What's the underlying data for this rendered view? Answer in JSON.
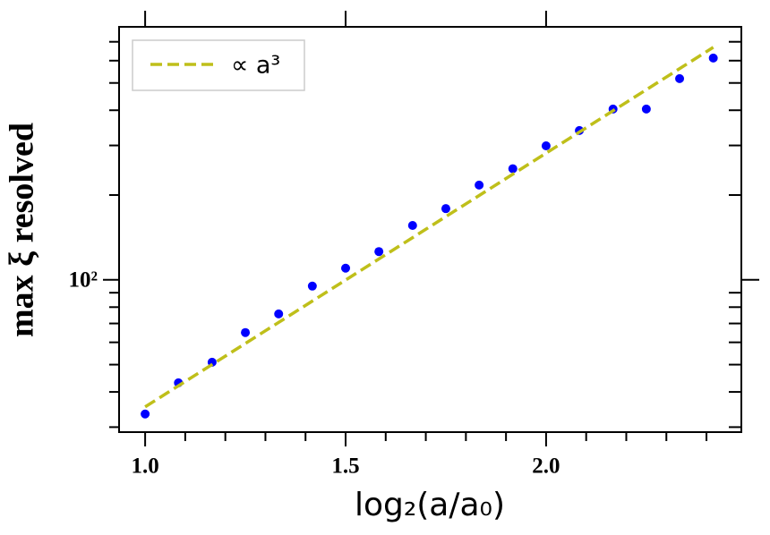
{
  "chart_data": {
    "type": "scatter",
    "xlabel": "log₂(a/a₀)",
    "ylabel": "max ξ resolved",
    "log_y": true,
    "xlim": [
      0.935,
      2.487
    ],
    "ylim": [
      28.8,
      791
    ],
    "xticks": [
      {
        "value": 1.0,
        "label": "1.0"
      },
      {
        "value": 1.5,
        "label": "1.5"
      },
      {
        "value": 2.0,
        "label": "2.0"
      }
    ],
    "xminorticks": [
      1.1,
      1.2,
      1.3,
      1.4,
      1.6,
      1.7,
      1.8,
      1.9,
      2.1,
      2.2,
      2.3,
      2.4
    ],
    "yticks": [
      {
        "value": 100,
        "label": "10²"
      }
    ],
    "yminorticks": [
      30,
      40,
      50,
      60,
      70,
      80,
      90,
      200,
      300,
      400,
      500,
      600,
      700
    ],
    "legend_position": "upper left",
    "series": [
      {
        "type": "scatter",
        "color": "#0000ff",
        "x": [
          1.0,
          1.083,
          1.167,
          1.25,
          1.333,
          1.417,
          1.5,
          1.583,
          1.667,
          1.75,
          1.833,
          1.917,
          2.0,
          2.083,
          2.167,
          2.25,
          2.333,
          2.417
        ],
        "values": [
          33.4,
          43.1,
          51.0,
          65.0,
          75.7,
          95,
          110,
          126,
          156,
          179,
          217,
          248,
          299,
          339,
          404,
          404,
          518,
          613
        ]
      },
      {
        "type": "line",
        "name": "∝ a³",
        "color": "#bfbf1a",
        "dashed": true,
        "x": [
          1.0,
          2.417
        ],
        "values": [
          35.4,
          669
        ]
      }
    ]
  }
}
